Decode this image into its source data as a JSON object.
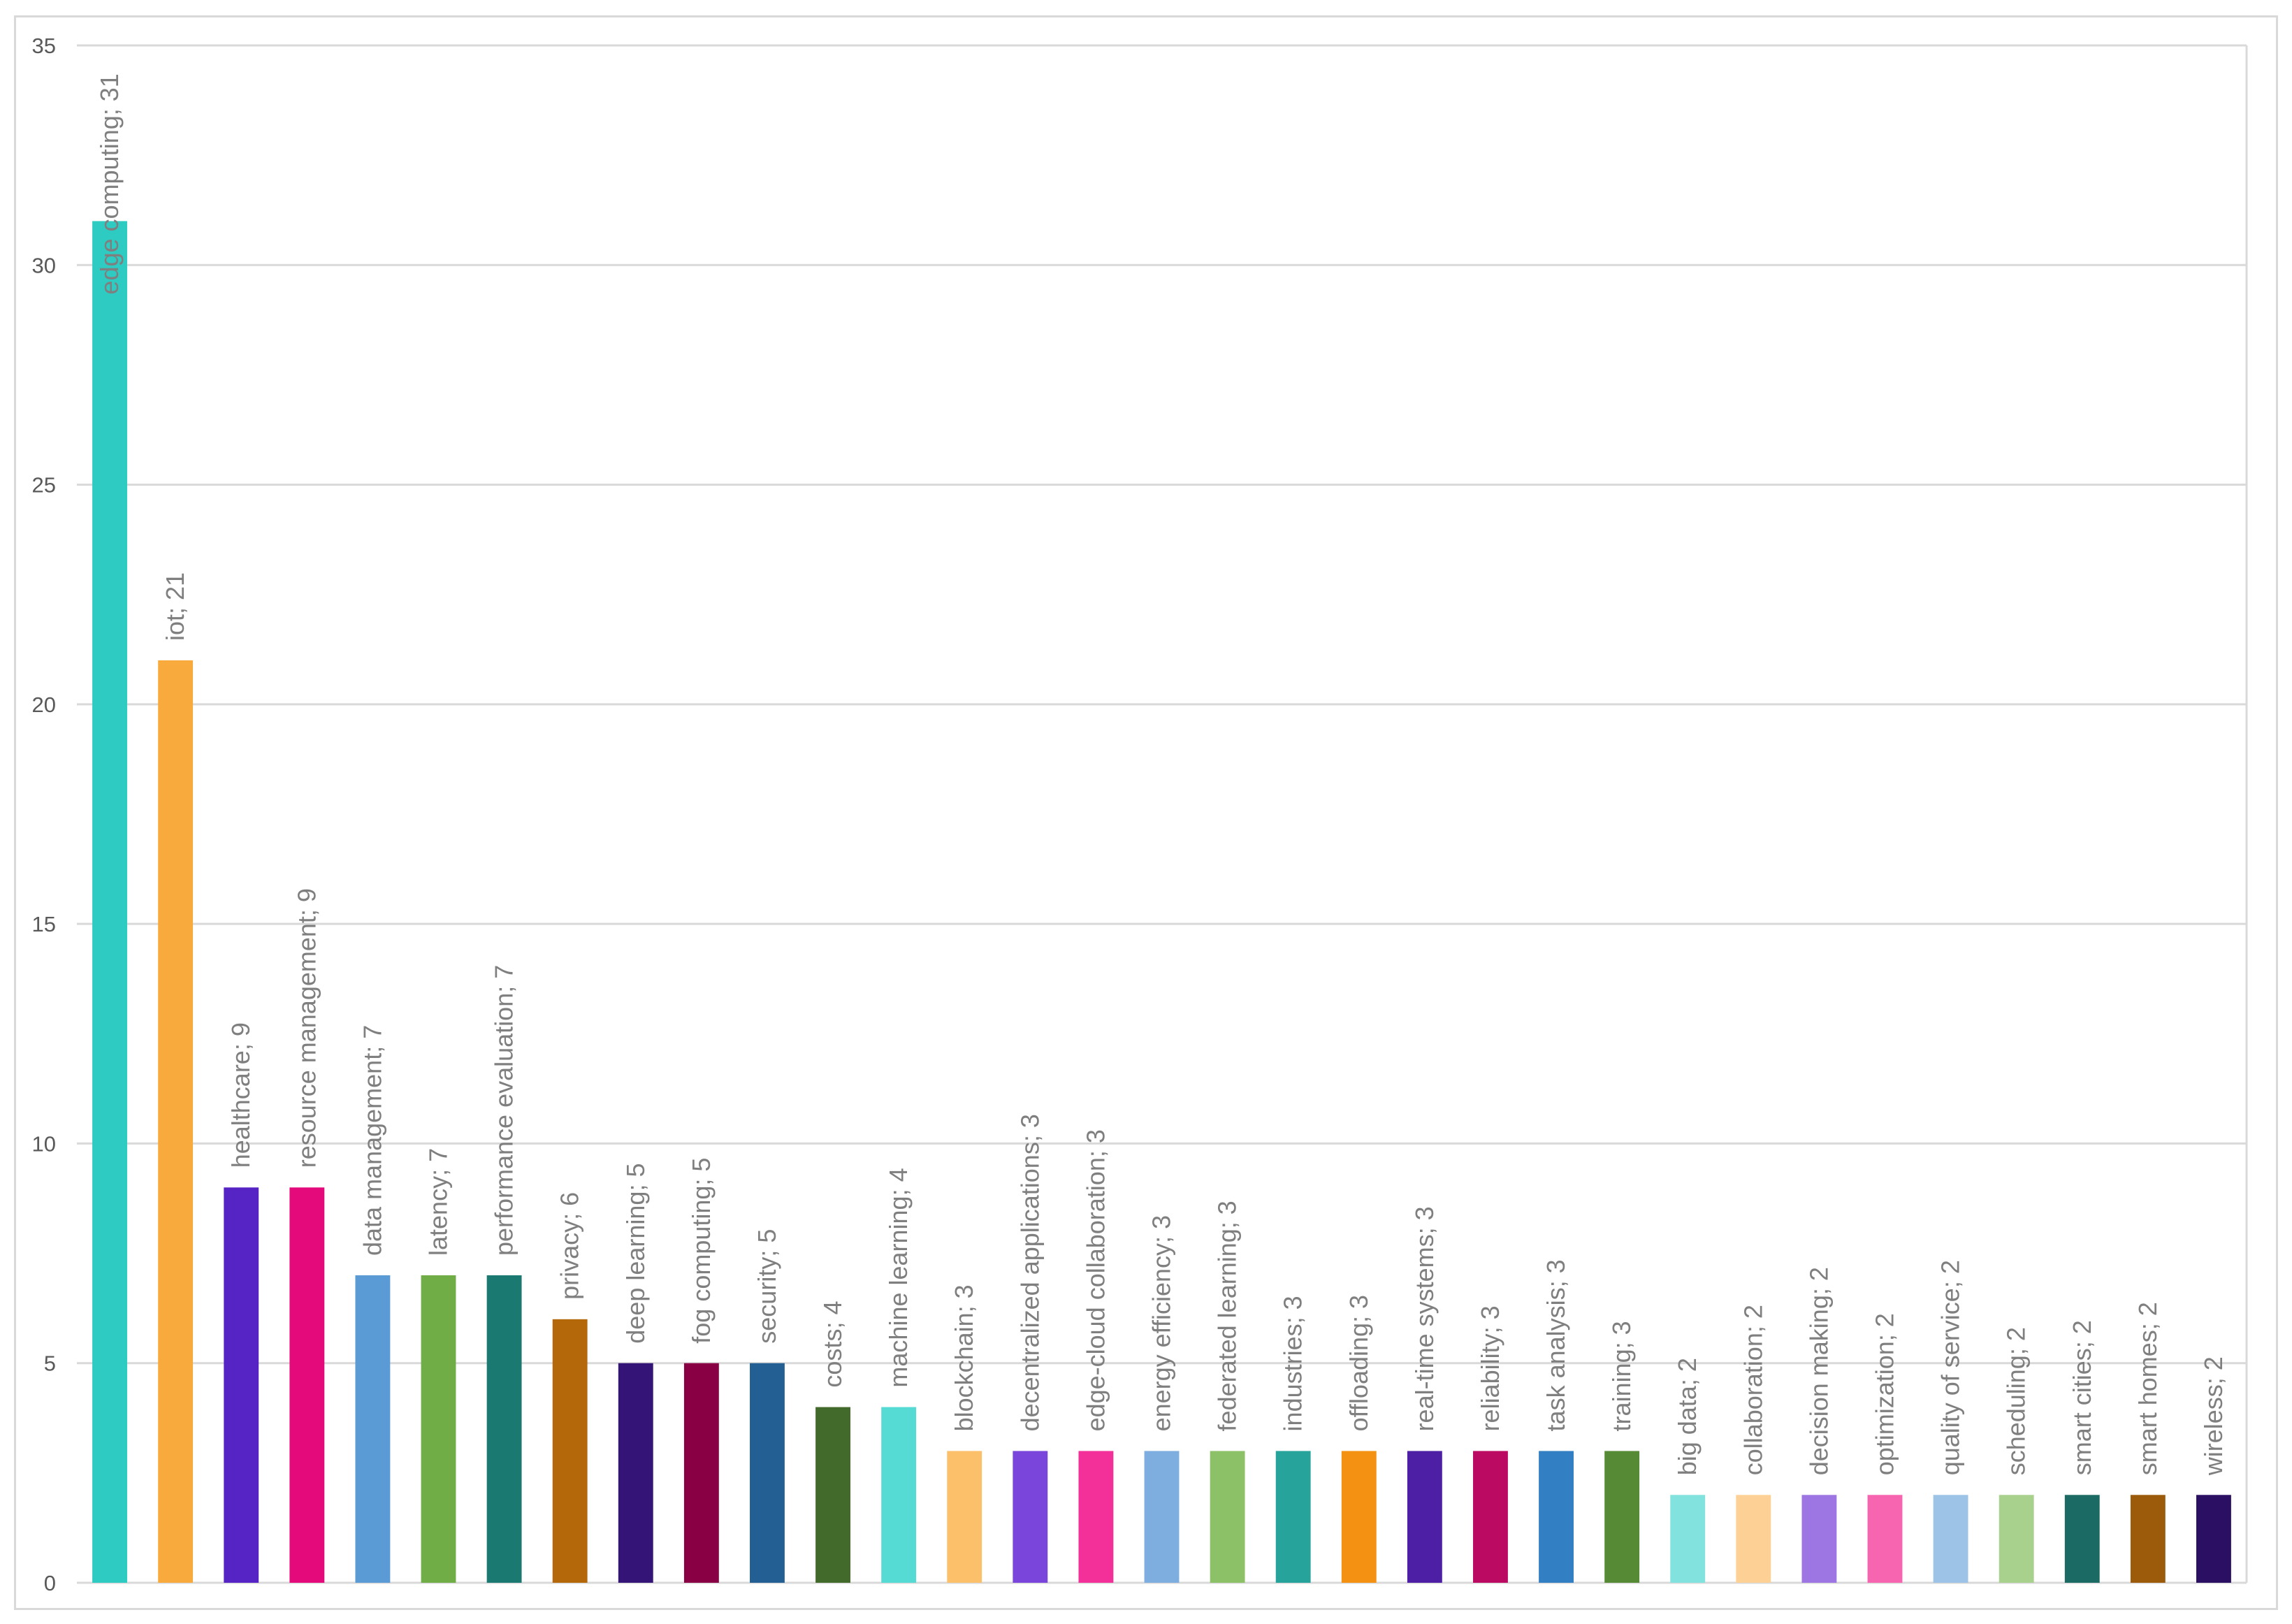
{
  "chart_data": {
    "type": "bar",
    "title": "",
    "xlabel": "",
    "ylabel": "",
    "ylim": [
      0,
      35
    ],
    "yticks": [
      0,
      5,
      10,
      15,
      20,
      25,
      30,
      35
    ],
    "grid": true,
    "legend": "none",
    "categories": [
      "edge computing",
      "iot",
      "healthcare",
      "resource management",
      "data management",
      "latency",
      "performance evaluation",
      "privacy",
      "deep learning",
      "fog computing",
      "security",
      "costs",
      "machine learning",
      "blockchain",
      "decentralized applications",
      "edge-cloud collaboration",
      "energy efficiency",
      "federated learning",
      "industries",
      "offloading",
      "real-time systems",
      "reliability",
      "task analysis",
      "training",
      "big data",
      "collaboration",
      "decision making",
      "optimization",
      "quality of service",
      "scheduling",
      "smart cities",
      "smart homes",
      "wireless"
    ],
    "values": [
      31,
      21,
      9,
      9,
      7,
      7,
      7,
      6,
      5,
      5,
      5,
      4,
      4,
      3,
      3,
      3,
      3,
      3,
      3,
      3,
      3,
      3,
      3,
      3,
      2,
      2,
      2,
      2,
      2,
      2,
      2,
      2,
      2
    ],
    "colors": [
      "#2ECBC2",
      "#F9AA3C",
      "#5623C4",
      "#E50A7B",
      "#5B9BD5",
      "#70AD47",
      "#1A7A72",
      "#B5680A",
      "#341577",
      "#8A0045",
      "#235F92",
      "#426A2B",
      "#56DAD4",
      "#FCC06A",
      "#7A45DB",
      "#F3309A",
      "#7DAEDF",
      "#8DC167",
      "#26A39B",
      "#F49012",
      "#4C1FA4",
      "#BA0A61",
      "#337FC3",
      "#568A35",
      "#82E2DD",
      "#FDD196",
      "#9E76E3",
      "#F765B0",
      "#9DC3E6",
      "#A9D18E",
      "#1B6B64",
      "#9C5B0A",
      "#2A0F63"
    ],
    "data_labels": [
      "edge computing; 31",
      "iot; 21",
      "healthcare; 9",
      "resource management; 9",
      "data management; 7",
      "latency; 7",
      "performance evaluation; 7",
      "privacy; 6",
      "deep learning; 5",
      "fog computing; 5",
      "security; 5",
      "costs; 4",
      "machine learning; 4",
      "blockchain; 3",
      "decentralized applications; 3",
      "edge-cloud collaboration; 3",
      "energy efficiency; 3",
      "federated learning; 3",
      "industries; 3",
      "offloading; 3",
      "real-time systems; 3",
      "reliability; 3",
      "task analysis; 3",
      "training; 3",
      "big data; 2",
      "collaboration; 2",
      "decision making; 2",
      "optimization; 2",
      "quality of service; 2",
      "scheduling; 2",
      "smart cities; 2",
      "smart homes; 2",
      "wireless; 2"
    ]
  }
}
